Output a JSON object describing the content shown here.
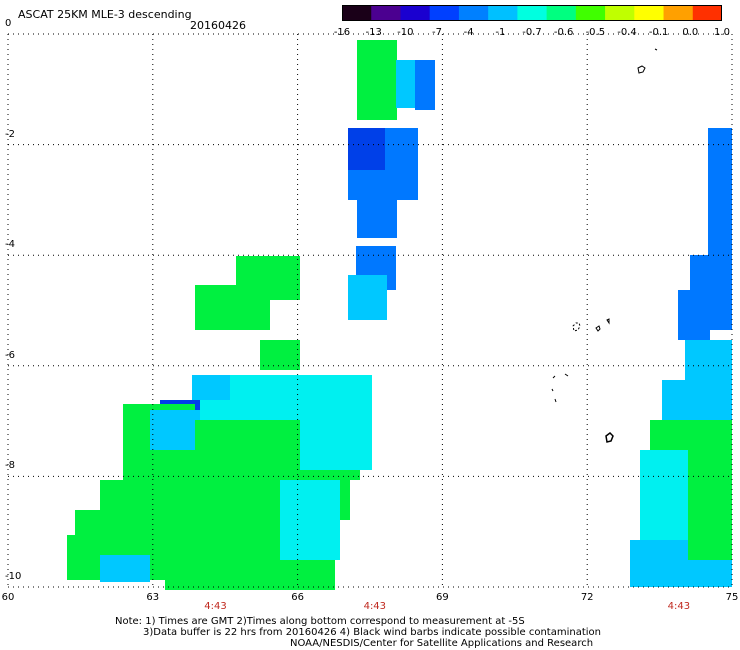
{
  "header": {
    "title": "ASCAT 25KM MLE-3 descending",
    "date": "20160426"
  },
  "colorbar": {
    "colors": [
      "#1a0018",
      "#4b0090",
      "#1a00d0",
      "#0040ff",
      "#0080ff",
      "#00c0ff",
      "#00ffe0",
      "#00ff80",
      "#40ff00",
      "#c0ff00",
      "#ffff00",
      "#ffa000",
      "#ff3000"
    ],
    "labels": [
      "-16",
      "-13",
      "-10",
      "-7",
      "-4",
      "-1",
      "-0.7",
      "-0.6",
      "-0.5",
      "-0.4",
      "-0.1",
      "0.0",
      "1.0"
    ]
  },
  "axes": {
    "y_ticks": [
      {
        "value": 0,
        "label": "0"
      },
      {
        "value": -2,
        "label": "-2"
      },
      {
        "value": -4,
        "label": "-4"
      },
      {
        "value": -6,
        "label": "-6"
      },
      {
        "value": -8,
        "label": "-8"
      },
      {
        "value": -10,
        "label": "-10"
      }
    ],
    "x_ticks": [
      {
        "value": 60,
        "label": "60"
      },
      {
        "value": 63,
        "label": "63"
      },
      {
        "value": 66,
        "label": "66"
      },
      {
        "value": 69,
        "label": "69"
      },
      {
        "value": 72,
        "label": "72"
      },
      {
        "value": 75,
        "label": "75"
      }
    ],
    "time_labels": [
      {
        "value": 64.3,
        "label": "4:43"
      },
      {
        "value": 67.6,
        "label": "4:43"
      },
      {
        "value": 73.9,
        "label": "4:43"
      }
    ]
  },
  "swath_colors": {
    "green": "#00f040",
    "cyan": "#00f0f0",
    "lightblue": "#00c8ff",
    "blue": "#0078ff",
    "darkblue": "#0040e8"
  },
  "notes": {
    "line1": "Note: 1) Times are GMT 2)Times along bottom correspond to measurement at -5S",
    "line2": "3)Data buffer is 22 hrs from 20160426 4) Black wind barbs indicate possible contamination",
    "line3": "NOAA/NESDIS/Center for Satellite Applications and Research"
  }
}
